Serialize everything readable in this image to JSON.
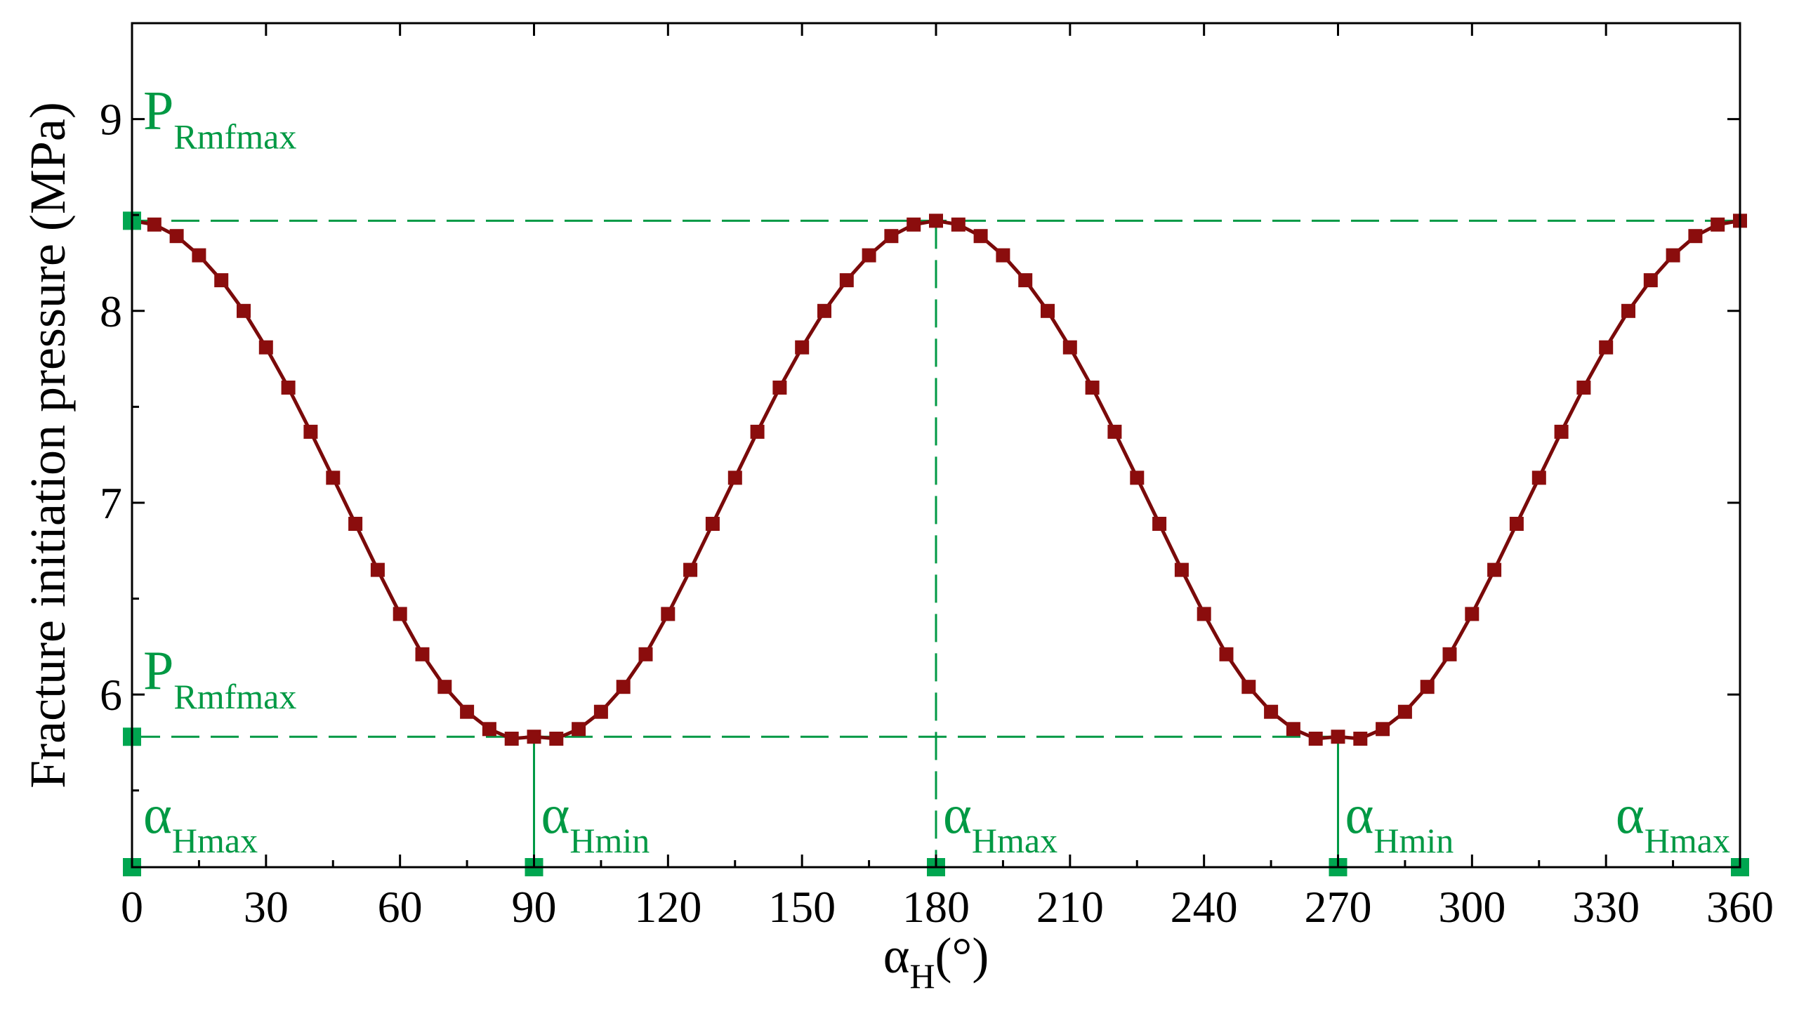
{
  "colors": {
    "series": "#8b0d0d",
    "annotation": "#009944",
    "axis": "#000000",
    "background": "#ffffff"
  },
  "chart_data": {
    "type": "line",
    "xlabel": {
      "main": "α",
      "sub": "H",
      "suffix": "(°)"
    },
    "ylabel": "Fracture  initiation  pressure (MPa)",
    "xlim": [
      0,
      360
    ],
    "ylim": [
      5.1,
      9.5
    ],
    "x_ticks": [
      0,
      30,
      60,
      90,
      120,
      150,
      180,
      210,
      240,
      270,
      300,
      330,
      360
    ],
    "x_tick_labels": [
      "0",
      "30",
      "60",
      "90",
      "120",
      "150",
      "180",
      "210",
      "240",
      "270",
      "300",
      "330",
      "360"
    ],
    "y_ticks": [
      6,
      7,
      8,
      9
    ],
    "y_tick_labels": [
      "6",
      "7",
      "8",
      "9"
    ],
    "grid": false,
    "legend": "none",
    "series": [
      {
        "marker": "square",
        "x": [
          0,
          5,
          10,
          15,
          20,
          25,
          30,
          35,
          40,
          45,
          50,
          55,
          60,
          65,
          70,
          75,
          80,
          85,
          90,
          95,
          100,
          105,
          110,
          115,
          120,
          125,
          130,
          135,
          140,
          145,
          150,
          155,
          160,
          165,
          170,
          175,
          180,
          185,
          190,
          195,
          200,
          205,
          210,
          215,
          220,
          225,
          230,
          235,
          240,
          245,
          250,
          255,
          260,
          265,
          270,
          275,
          280,
          285,
          290,
          295,
          300,
          305,
          310,
          315,
          320,
          325,
          330,
          335,
          340,
          345,
          350,
          355,
          360
        ],
        "values": [
          8.47,
          8.45,
          8.39,
          8.29,
          8.16,
          8.0,
          7.81,
          7.6,
          7.37,
          7.13,
          6.89,
          6.65,
          6.42,
          6.21,
          6.04,
          5.91,
          5.82,
          5.77,
          5.78,
          5.77,
          5.82,
          5.91,
          6.04,
          6.21,
          6.42,
          6.65,
          6.89,
          7.13,
          7.37,
          7.6,
          7.81,
          8.0,
          8.16,
          8.29,
          8.39,
          8.45,
          8.47,
          8.45,
          8.39,
          8.29,
          8.16,
          8.0,
          7.81,
          7.6,
          7.37,
          7.13,
          6.89,
          6.65,
          6.42,
          6.21,
          6.04,
          5.91,
          5.82,
          5.77,
          5.78,
          5.77,
          5.82,
          5.91,
          6.04,
          6.21,
          6.42,
          6.65,
          6.89,
          7.13,
          7.37,
          7.6,
          7.81,
          8.0,
          8.16,
          8.29,
          8.39,
          8.45,
          8.47
        ]
      }
    ],
    "reference_lines": {
      "y_max": 8.47,
      "y_min": 5.78,
      "x_marks": [
        90,
        180,
        270
      ]
    },
    "key_points": {
      "y_axis": [
        8.47,
        5.78
      ],
      "x_axis": [
        0,
        90,
        180,
        270,
        360
      ]
    },
    "annotations": [
      {
        "main": "P",
        "sub": "Rmfmax",
        "x": 0,
        "y": 8.95
      },
      {
        "main": "P",
        "sub": "Rmfmax",
        "x": 0,
        "y": 6.03
      },
      {
        "main": "α",
        "sub": "Hmax",
        "x": 0,
        "y": 5.28
      },
      {
        "main": "α",
        "sub": "Hmin",
        "x": 90,
        "y": 5.28
      },
      {
        "main": "α",
        "sub": "Hmax",
        "x": 180,
        "y": 5.28
      },
      {
        "main": "α",
        "sub": "Hmin",
        "x": 270,
        "y": 5.28
      },
      {
        "main": "α",
        "sub": "Hmax",
        "x": 360,
        "y": 5.28
      }
    ]
  }
}
